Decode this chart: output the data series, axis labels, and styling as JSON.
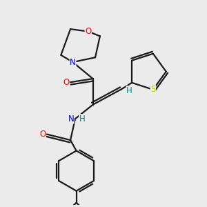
{
  "background_color": "#ebebeb",
  "bond_color": "#1a1a1a",
  "atom_colors": {
    "O": "#ff0000",
    "N": "#0000ee",
    "S": "#cccc00",
    "H": "#008888",
    "C": "#1a1a1a"
  },
  "figsize": [
    3.0,
    3.0
  ],
  "dpi": 100,
  "lw": 1.6,
  "fs": 8.5
}
